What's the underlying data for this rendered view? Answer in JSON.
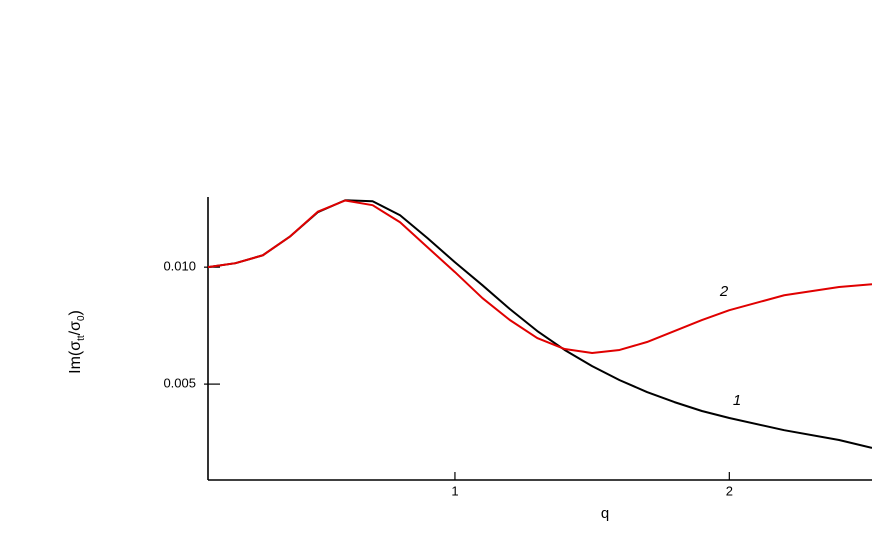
{
  "chart_data": {
    "type": "line",
    "xlabel": "q",
    "ylabel": [
      "Im(σ",
      "tt",
      "/σ",
      "0",
      ")"
    ],
    "xlim": [
      0.1,
      2.52
    ],
    "ylim": [
      0.0009,
      0.013
    ],
    "xticks": [
      1,
      2
    ],
    "yticks": [
      0.005,
      {
        "value": 0.01,
        "label": "0.010"
      }
    ],
    "x": [
      0.1,
      0.2,
      0.3,
      0.4,
      0.5,
      0.6,
      0.7,
      0.8,
      0.9,
      1.0,
      1.1,
      1.2,
      1.3,
      1.4,
      1.5,
      1.6,
      1.7,
      1.8,
      1.9,
      2.0,
      2.2,
      2.4,
      2.52
    ],
    "series": [
      {
        "name": "1",
        "color": "#000000",
        "values": [
          0.01,
          0.01017,
          0.01051,
          0.01132,
          0.01235,
          0.01286,
          0.01282,
          0.01222,
          0.01124,
          0.01021,
          0.00923,
          0.00821,
          0.00727,
          0.00646,
          0.00577,
          0.00517,
          0.00466,
          0.00423,
          0.00385,
          0.00355,
          0.00303,
          0.00261,
          0.00227
        ]
      },
      {
        "name": "2",
        "color": "#e00000",
        "values": [
          0.01,
          0.01017,
          0.01051,
          0.01132,
          0.01237,
          0.01285,
          0.01265,
          0.01192,
          0.01085,
          0.00979,
          0.00868,
          0.00774,
          0.00697,
          0.0065,
          0.00633,
          0.00646,
          0.0068,
          0.00727,
          0.00774,
          0.00816,
          0.0088,
          0.00915,
          0.00927
        ]
      }
    ]
  }
}
